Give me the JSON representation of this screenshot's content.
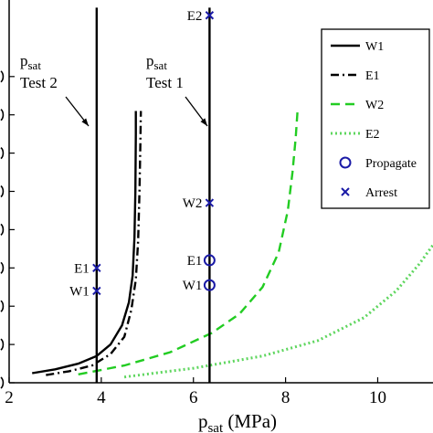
{
  "chart_data": {
    "type": "line",
    "xlabel_main": "p",
    "xlabel_sub": "sat",
    "xlabel_unit": "(MPa)",
    "xlim": [
      2,
      11.2
    ],
    "ylim": [
      0,
      10
    ],
    "xticks": [
      2,
      4,
      6,
      8,
      10
    ],
    "xtick_labels": [
      "2",
      "4",
      "6",
      "8",
      "10"
    ],
    "yticks": [
      0,
      1,
      2,
      3,
      4,
      5,
      6,
      7,
      8
    ],
    "grid": false,
    "legend_position": "top-right",
    "series": [
      {
        "name": "W1",
        "color": "#000000",
        "style": "solid",
        "x": [
          2.5,
          3.0,
          3.5,
          3.9,
          4.2,
          4.45,
          4.6,
          4.68,
          4.72,
          4.74,
          4.75,
          4.75
        ],
        "y": [
          0.25,
          0.35,
          0.5,
          0.7,
          1.0,
          1.5,
          2.1,
          2.8,
          3.8,
          5.0,
          6.5,
          7.1
        ]
      },
      {
        "name": "E1",
        "color": "#000000",
        "style": "dashdot",
        "x": [
          2.8,
          3.3,
          3.8,
          4.2,
          4.5,
          4.65,
          4.75,
          4.8,
          4.83,
          4.85,
          4.86
        ],
        "y": [
          0.2,
          0.3,
          0.45,
          0.75,
          1.2,
          1.9,
          2.7,
          3.7,
          5.0,
          6.3,
          7.1
        ]
      },
      {
        "name": "W2",
        "color": "#22cc22",
        "style": "dashed",
        "x": [
          3.5,
          4.5,
          5.5,
          6.4,
          7.0,
          7.5,
          7.85,
          8.05,
          8.15,
          8.22,
          8.26
        ],
        "y": [
          0.22,
          0.45,
          0.8,
          1.3,
          1.8,
          2.5,
          3.4,
          4.5,
          5.5,
          6.4,
          7.1
        ]
      },
      {
        "name": "E2",
        "color": "#5ed65e",
        "style": "dotted",
        "x": [
          4.5,
          6.0,
          7.5,
          8.7,
          9.7,
          10.4,
          10.9,
          11.2
        ],
        "y": [
          0.15,
          0.38,
          0.7,
          1.1,
          1.7,
          2.4,
          3.1,
          3.6
        ]
      }
    ],
    "vertical_lines": [
      {
        "name": "psat Test 2",
        "x": 3.9,
        "y_top": 9.8
      },
      {
        "name": "psat Test 1",
        "x": 6.35,
        "y_top": 9.8
      }
    ],
    "markers": [
      {
        "label": "E1",
        "x": 3.9,
        "y": 3.0,
        "marker": "x"
      },
      {
        "label": "W1",
        "x": 3.9,
        "y": 2.4,
        "marker": "x"
      },
      {
        "label": "E2",
        "x": 6.35,
        "y": 9.6,
        "marker": "x"
      },
      {
        "label": "W2",
        "x": 6.35,
        "y": 4.7,
        "marker": "x"
      },
      {
        "label": "E1",
        "x": 6.35,
        "y": 3.2,
        "marker": "o"
      },
      {
        "label": "W1",
        "x": 6.35,
        "y": 2.55,
        "marker": "o"
      }
    ],
    "annotations": [
      {
        "main": "p",
        "sub": "sat",
        "line2": "Test 2"
      },
      {
        "main": "p",
        "sub": "sat",
        "line2": "Test 1"
      }
    ],
    "legend": [
      {
        "label": "W1",
        "kind": "line",
        "color": "#000000",
        "style": "solid"
      },
      {
        "label": "E1",
        "kind": "line",
        "color": "#000000",
        "style": "dashdot"
      },
      {
        "label": "W2",
        "kind": "line",
        "color": "#22cc22",
        "style": "dashed"
      },
      {
        "label": "E2",
        "kind": "line",
        "color": "#5ed65e",
        "style": "dotted"
      },
      {
        "label": "Propagate",
        "kind": "marker",
        "marker": "o",
        "color": "#1a1aa6"
      },
      {
        "label": "Arrest",
        "kind": "marker",
        "marker": "x",
        "color": "#1a1aa6"
      }
    ],
    "marker_color": "#1a1aa6"
  }
}
